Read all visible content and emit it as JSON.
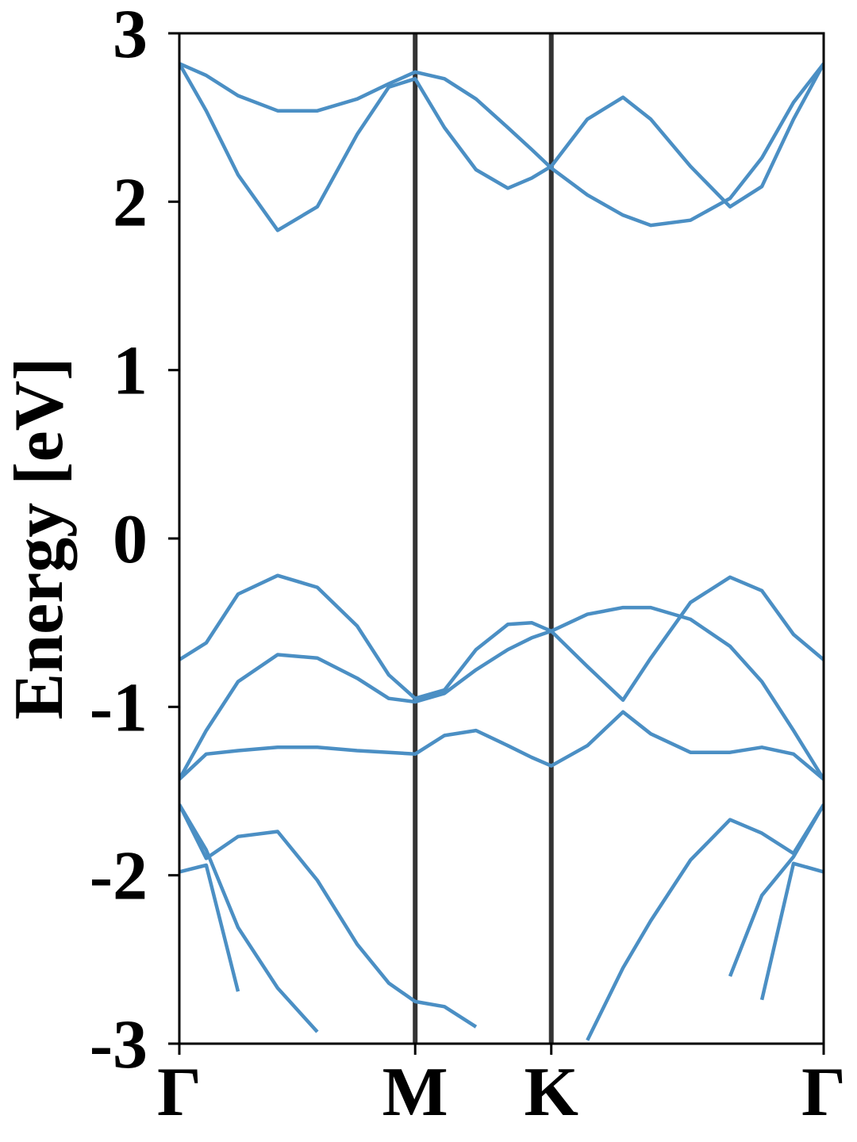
{
  "chart_data": {
    "type": "line",
    "ylabel": "Energy [eV]",
    "x": [
      0,
      0.114,
      0.249,
      0.417,
      0.585,
      0.754,
      0.888,
      1.0,
      1.124,
      1.258,
      1.393,
      1.494,
      1.577,
      1.73,
      1.881,
      1.999,
      2.167,
      2.335,
      2.47,
      2.604,
      2.732
    ],
    "xlim": [
      0,
      2.732
    ],
    "xticks": [
      {
        "value": 0,
        "label": "Γ"
      },
      {
        "value": 1.0,
        "label": "M"
      },
      {
        "value": 1.577,
        "label": "K"
      },
      {
        "value": 2.732,
        "label": "Γ"
      }
    ],
    "ylim": [
      -3,
      3
    ],
    "yticks": [
      -3,
      -2,
      -1,
      0,
      1,
      2,
      3
    ],
    "color": "#4b8fc4",
    "series": [
      {
        "color": "#4b8fc4",
        "values": [
          2.82,
          2.75,
          2.63,
          2.54,
          2.54,
          2.61,
          2.7,
          2.77,
          2.73,
          2.61,
          2.44,
          2.31,
          2.2,
          2.04,
          1.92,
          1.86,
          1.89,
          2.02,
          2.26,
          2.59,
          2.82
        ]
      },
      {
        "color": "#4b8fc4",
        "values": [
          2.82,
          2.54,
          2.16,
          1.83,
          1.97,
          2.4,
          2.68,
          2.73,
          2.44,
          2.19,
          2.08,
          2.14,
          2.21,
          2.49,
          2.62,
          2.49,
          2.21,
          1.97,
          2.09,
          2.49,
          2.82
        ]
      },
      {
        "color": "#4b8fc4",
        "values": [
          -0.72,
          -0.62,
          -0.33,
          -0.22,
          -0.29,
          -0.52,
          -0.81,
          -0.95,
          -0.9,
          -0.66,
          -0.51,
          -0.5,
          -0.55,
          -0.76,
          -0.96,
          -0.71,
          -0.38,
          -0.23,
          -0.31,
          -0.57,
          -0.72
        ]
      },
      {
        "color": "#4b8fc4",
        "values": [
          -1.43,
          -1.14,
          -0.85,
          -0.69,
          -0.71,
          -0.83,
          -0.95,
          -0.97,
          -0.92,
          -0.78,
          -0.66,
          -0.59,
          -0.55,
          -0.45,
          -0.41,
          -0.41,
          -0.48,
          -0.64,
          -0.85,
          -1.14,
          -1.43
        ]
      },
      {
        "color": "#4b8fc4",
        "values": [
          -1.43,
          -1.28,
          -1.26,
          -1.24,
          -1.24,
          -1.26,
          -1.27,
          -1.28,
          -1.17,
          -1.14,
          -1.23,
          -1.3,
          -1.35,
          -1.23,
          -1.03,
          -1.16,
          -1.27,
          -1.27,
          -1.24,
          -1.28,
          -1.43
        ]
      },
      {
        "color": "#4b8fc4",
        "values": [
          -1.58,
          -1.9,
          -1.77,
          -1.74,
          -2.03,
          -2.41,
          -2.64,
          -2.75,
          -2.78,
          -2.9,
          null,
          null,
          null,
          -2.98,
          -2.55,
          -2.27,
          -1.91,
          -1.67,
          -1.75,
          -1.87,
          -1.58
        ]
      },
      {
        "color": "#4b8fc4",
        "values": [
          -1.58,
          -1.85,
          -2.31,
          -2.67,
          -2.93,
          null,
          null,
          null,
          null,
          null,
          null,
          null,
          null,
          null,
          null,
          null,
          null,
          -2.6,
          -2.12,
          -1.89,
          -1.58
        ]
      },
      {
        "color": "#4b8fc4",
        "values": [
          -1.98,
          -1.94,
          -2.69,
          null,
          null,
          null,
          null,
          null,
          null,
          null,
          null,
          null,
          null,
          null,
          null,
          null,
          null,
          null,
          -2.74,
          -1.93,
          -1.98
        ]
      }
    ]
  }
}
